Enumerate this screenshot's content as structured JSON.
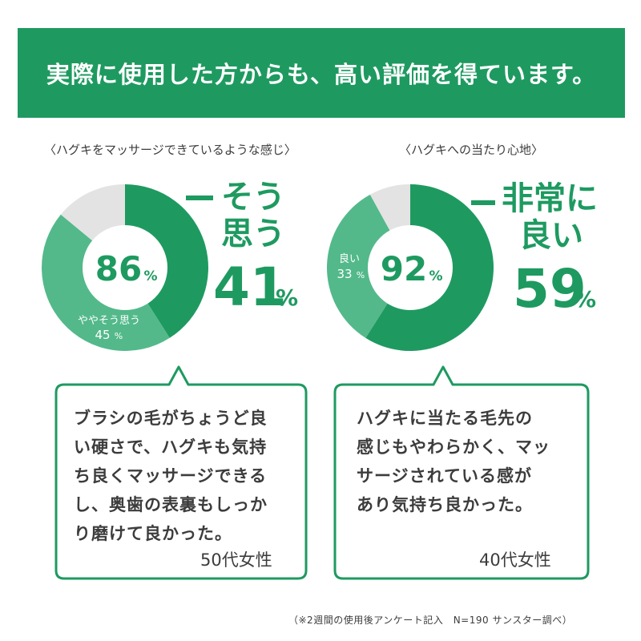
{
  "banner": {
    "title": "実際に使用した方からも、高い評価を得ています。"
  },
  "chart_data": [
    {
      "type": "pie",
      "title": "〈ハグキをマッサージできているような感じ〉",
      "center_label": "86",
      "center_unit": "%",
      "slices": [
        {
          "label": "そう思う",
          "value": 41,
          "color": "#1e9a60"
        },
        {
          "label": "ややそう思う",
          "value": 45,
          "color": "#53b98a"
        },
        {
          "label": "",
          "value": 14,
          "color": "#e3e3e3"
        }
      ],
      "highlight": {
        "line1": "そう",
        "line2": "思う",
        "value": "41",
        "unit": "%"
      },
      "inner_label": {
        "name": "ややそう思う",
        "value": "45",
        "unit": "%"
      }
    },
    {
      "type": "pie",
      "title": "〈ハグキへの当たり心地〉",
      "center_label": "92",
      "center_unit": "%",
      "slices": [
        {
          "label": "非常に良い",
          "value": 59,
          "color": "#1e9a60"
        },
        {
          "label": "良い",
          "value": 33,
          "color": "#53b98a"
        },
        {
          "label": "",
          "value": 8,
          "color": "#e3e3e3"
        }
      ],
      "highlight": {
        "line1": "非常に",
        "line2": "良い",
        "value": "59",
        "unit": "%"
      },
      "inner_label": {
        "name": "良い",
        "value": "33",
        "unit": "%"
      }
    }
  ],
  "testimonials": [
    {
      "lines": [
        "ブラシの毛がちょうど良",
        "い硬さで、ハグキも気持",
        "ち良くマッサージできる",
        "し、奥歯の表裏もしっか",
        "り磨けて良かった。"
      ],
      "author": "50代女性"
    },
    {
      "lines": [
        "ハグキに当たる毛先の",
        "感じもやわらかく、マッ",
        "サージされている感が",
        "あり気持ち良かった。"
      ],
      "author": "40代女性"
    }
  ],
  "footnote": "（※2週間の使用後アンケート記入　N=190 サンスター調べ）"
}
